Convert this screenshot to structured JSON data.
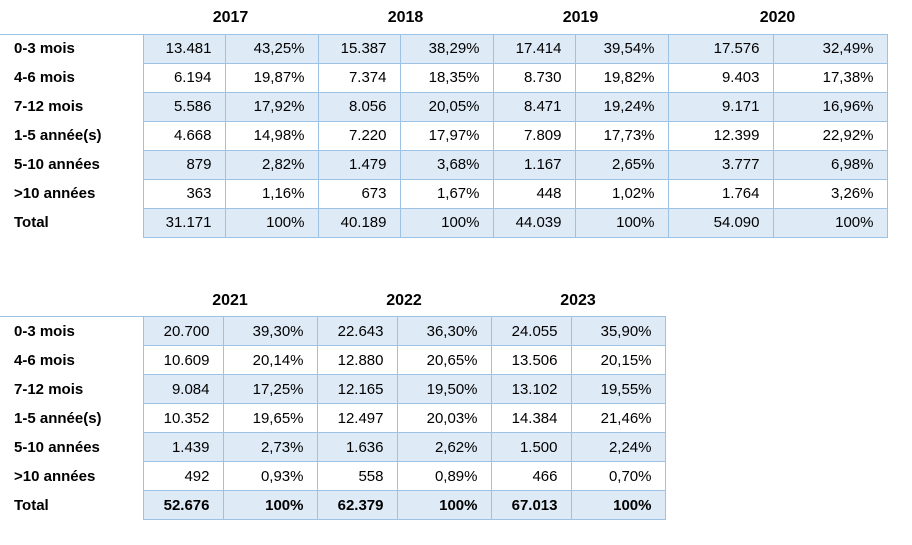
{
  "chart_data": [
    {
      "type": "table",
      "years": [
        "2017",
        "2018",
        "2019",
        "2020"
      ],
      "rows": [
        {
          "label": "0-3 mois",
          "values": [
            "13.481",
            "43,25%",
            "15.387",
            "38,29%",
            "17.414",
            "39,54%",
            "17.576",
            "32,49%"
          ]
        },
        {
          "label": "4-6 mois",
          "values": [
            "6.194",
            "19,87%",
            "7.374",
            "18,35%",
            "8.730",
            "19,82%",
            "9.403",
            "17,38%"
          ]
        },
        {
          "label": "7-12 mois",
          "values": [
            "5.586",
            "17,92%",
            "8.056",
            "20,05%",
            "8.471",
            "19,24%",
            "9.171",
            "16,96%"
          ]
        },
        {
          "label": "1-5 année(s)",
          "values": [
            "4.668",
            "14,98%",
            "7.220",
            "17,97%",
            "7.809",
            "17,73%",
            "12.399",
            "22,92%"
          ]
        },
        {
          "label": "5-10 années",
          "values": [
            "879",
            "2,82%",
            "1.479",
            "3,68%",
            "1.167",
            "2,65%",
            "3.777",
            "6,98%"
          ]
        },
        {
          "label": ">10 années",
          "values": [
            "363",
            "1,16%",
            "673",
            "1,67%",
            "448",
            "1,02%",
            "1.764",
            "3,26%"
          ]
        },
        {
          "label": "Total",
          "values": [
            "31.171",
            "100%",
            "40.189",
            "100%",
            "44.039",
            "100%",
            "54.090",
            "100%"
          ]
        }
      ],
      "total_row_bold": false
    },
    {
      "type": "table",
      "years": [
        "2021",
        "2022",
        "2023"
      ],
      "rows": [
        {
          "label": "0-3 mois",
          "values": [
            "20.700",
            "39,30%",
            "22.643",
            "36,30%",
            "24.055",
            "35,90%"
          ]
        },
        {
          "label": "4-6 mois",
          "values": [
            "10.609",
            "20,14%",
            "12.880",
            "20,65%",
            "13.506",
            "20,15%"
          ]
        },
        {
          "label": "7-12 mois",
          "values": [
            "9.084",
            "17,25%",
            "12.165",
            "19,50%",
            "13.102",
            "19,55%"
          ]
        },
        {
          "label": "1-5 année(s)",
          "values": [
            "10.352",
            "19,65%",
            "12.497",
            "20,03%",
            "14.384",
            "21,46%"
          ]
        },
        {
          "label": "5-10 années",
          "values": [
            "1.439",
            "2,73%",
            "1.636",
            "2,62%",
            "1.500",
            "2,24%"
          ]
        },
        {
          "label": ">10 années",
          "values": [
            "492",
            "0,93%",
            "558",
            "0,89%",
            "466",
            "0,70%"
          ]
        },
        {
          "label": "Total",
          "values": [
            "52.676",
            "100%",
            "62.379",
            "100%",
            "67.013",
            "100%"
          ]
        }
      ],
      "total_row_bold": true
    }
  ],
  "colors": {
    "cell_border": "#9CC2E5",
    "banded_row_fill": "#DEEAF6",
    "text": "#000000",
    "background": "#FFFFFF"
  }
}
